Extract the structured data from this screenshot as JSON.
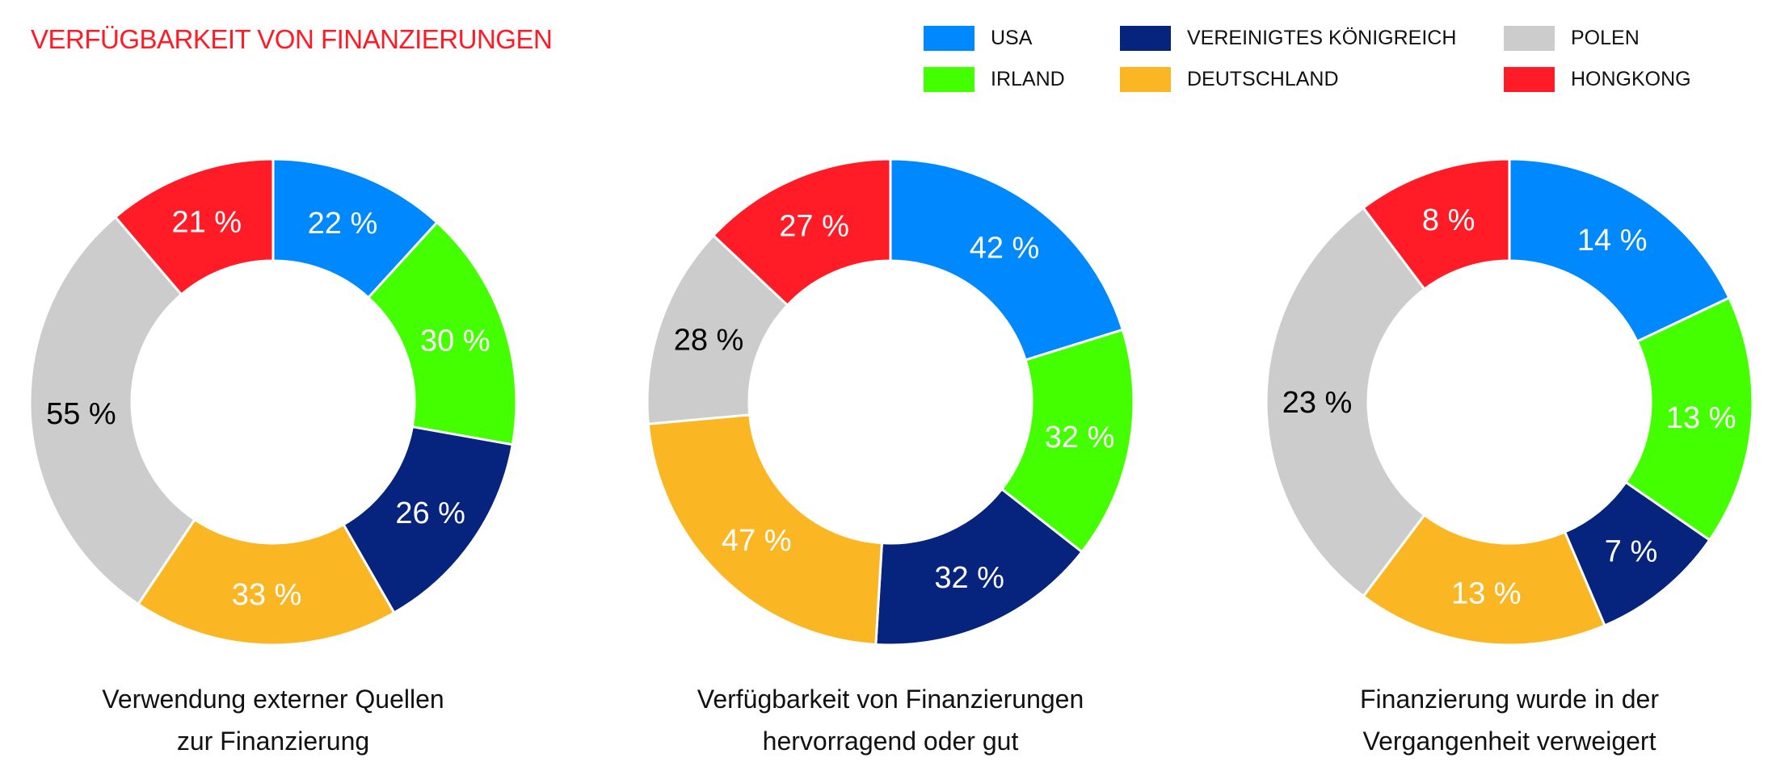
{
  "title": "VERFÜGBARKEIT VON FINANZIERUNGEN",
  "legend": [
    {
      "name": "USA",
      "color": "#0088FF"
    },
    {
      "name": "IRLAND",
      "color": "#44FF00"
    },
    {
      "name": "VEREINIGTES KÖNIGREICH",
      "color": "#06237E"
    },
    {
      "name": "DEUTSCHLAND",
      "color": "#FBB624"
    },
    {
      "name": "POLEN",
      "color": "#CCCCCC"
    },
    {
      "name": "HONGKONG",
      "color": "#FF1C26"
    }
  ],
  "chart_data": [
    {
      "type": "pie",
      "variant": "donut",
      "title": "Verwendung externer Quellen zur Finanzierung",
      "title_lines": [
        "Verwendung externer Quellen",
        "zur Finanzierung"
      ],
      "categories": [
        "USA",
        "IRLAND",
        "VEREINIGTES KÖNIGREICH",
        "DEUTSCHLAND",
        "POLEN",
        "HONGKONG"
      ],
      "values": [
        22,
        30,
        26,
        33,
        55,
        21
      ],
      "labels": [
        "22 %",
        "30 %",
        "26 %",
        "33 %",
        "55 %",
        "21 %"
      ]
    },
    {
      "type": "pie",
      "variant": "donut",
      "title": "Verfügbarkeit von Finanzierungen hervorragend oder gut",
      "title_lines": [
        "Verfügbarkeit von Finanzierungen",
        "hervorragend oder gut"
      ],
      "categories": [
        "USA",
        "IRLAND",
        "VEREINIGTES KÖNIGREICH",
        "DEUTSCHLAND",
        "POLEN",
        "HONGKONG"
      ],
      "values": [
        42,
        32,
        32,
        47,
        28,
        27
      ],
      "labels": [
        "42 %",
        "32 %",
        "32 %",
        "47 %",
        "28 %",
        "27 %"
      ]
    },
    {
      "type": "pie",
      "variant": "donut",
      "title": "Finanzierung wurde in der Vergangenheit verweigert",
      "title_lines": [
        "Finanzierung wurde in der",
        "Vergangenheit verweigert"
      ],
      "categories": [
        "USA",
        "IRLAND",
        "VEREINIGTES KÖNIGREICH",
        "DEUTSCHLAND",
        "POLEN",
        "HONGKONG"
      ],
      "values": [
        14,
        13,
        7,
        13,
        23,
        8
      ],
      "labels": [
        "14 %",
        "13 %",
        "7 %",
        "13 %",
        "23 %",
        "8 %"
      ]
    }
  ]
}
